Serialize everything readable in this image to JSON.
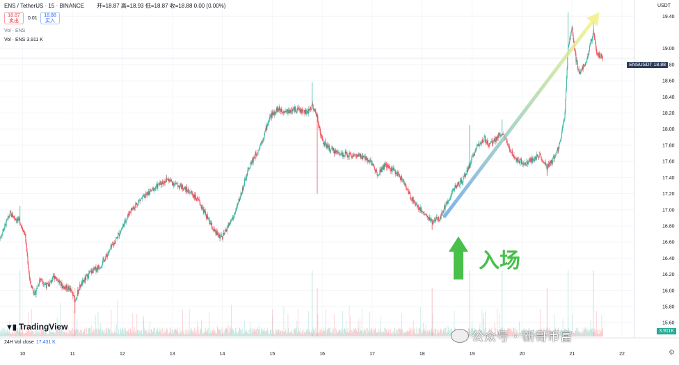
{
  "header": {
    "symbol": "ENS / TetherUS · 15 · BINANCE",
    "ohlc": "开=18.87 高=18.93 低=18.87 收=18.88 0.00 (0.00%)",
    "sell_price": "18.87",
    "sell_label": "卖出",
    "spread": "0.01",
    "buy_price": "18.88",
    "buy_label": "买入",
    "vol_label_1": "Vol · ENS",
    "vol_label_2": "Vol · ENS 3.911 K"
  },
  "axis_unit": "USDT",
  "price_tag": "ENSUSDT 18.88",
  "volume_tag": "3.911K",
  "footer": {
    "vol_label": "24H Vol close",
    "vol_value": "17.431 K",
    "brand": "TradingView"
  },
  "annotation": "入场",
  "watermark": "公众号 · 新哥币富",
  "colors": {
    "up": "#22ab94",
    "down": "#f23645",
    "arrow_start": "#6aa6e8",
    "arrow_end": "#f2f28a",
    "entry_arrow": "#48c04a"
  },
  "chart_data": {
    "type": "line",
    "x_ticks": [
      "10",
      "11",
      "12",
      "13",
      "14",
      "15",
      "16",
      "17",
      "18",
      "19",
      "20",
      "21",
      "22"
    ],
    "y_ticks": [
      "19.40",
      "19.00",
      "18.80",
      "18.60",
      "18.40",
      "18.20",
      "18.00",
      "17.80",
      "17.60",
      "17.40",
      "17.20",
      "17.00",
      "16.80",
      "16.60",
      "16.40",
      "16.20",
      "16.00",
      "15.80",
      "15.60"
    ],
    "ylim": [
      15.55,
      19.48
    ],
    "xlim": [
      9.55,
      22.25
    ],
    "price_path": [
      [
        9.55,
        16.65
      ],
      [
        9.65,
        16.8
      ],
      [
        9.75,
        16.95
      ],
      [
        9.85,
        16.9
      ],
      [
        9.95,
        16.85
      ],
      [
        10.05,
        16.7
      ],
      [
        10.15,
        16.1
      ],
      [
        10.25,
        15.95
      ],
      [
        10.35,
        16.15
      ],
      [
        10.5,
        16.05
      ],
      [
        10.65,
        16.18
      ],
      [
        10.8,
        16.05
      ],
      [
        10.95,
        16.02
      ],
      [
        11.05,
        15.88
      ],
      [
        11.15,
        16.05
      ],
      [
        11.35,
        16.22
      ],
      [
        11.55,
        16.3
      ],
      [
        11.75,
        16.5
      ],
      [
        11.95,
        16.72
      ],
      [
        12.15,
        16.98
      ],
      [
        12.35,
        17.12
      ],
      [
        12.55,
        17.22
      ],
      [
        12.75,
        17.32
      ],
      [
        12.9,
        17.38
      ],
      [
        13.05,
        17.32
      ],
      [
        13.2,
        17.28
      ],
      [
        13.4,
        17.2
      ],
      [
        13.55,
        17.08
      ],
      [
        13.7,
        16.9
      ],
      [
        13.85,
        16.72
      ],
      [
        14.0,
        16.65
      ],
      [
        14.1,
        16.78
      ],
      [
        14.25,
        16.95
      ],
      [
        14.4,
        17.25
      ],
      [
        14.55,
        17.55
      ],
      [
        14.7,
        17.72
      ],
      [
        14.82,
        17.9
      ],
      [
        14.95,
        18.15
      ],
      [
        15.1,
        18.25
      ],
      [
        15.3,
        18.22
      ],
      [
        15.5,
        18.25
      ],
      [
        15.7,
        18.2
      ],
      [
        15.8,
        18.3
      ],
      [
        15.9,
        18.15
      ],
      [
        16.0,
        17.85
      ],
      [
        16.15,
        17.75
      ],
      [
        16.35,
        17.7
      ],
      [
        16.55,
        17.68
      ],
      [
        16.75,
        17.66
      ],
      [
        16.95,
        17.62
      ],
      [
        17.1,
        17.45
      ],
      [
        17.25,
        17.55
      ],
      [
        17.45,
        17.48
      ],
      [
        17.6,
        17.38
      ],
      [
        17.75,
        17.18
      ],
      [
        17.9,
        17.05
      ],
      [
        18.05,
        16.95
      ],
      [
        18.2,
        16.85
      ],
      [
        18.35,
        16.9
      ],
      [
        18.5,
        17.1
      ],
      [
        18.65,
        17.28
      ],
      [
        18.8,
        17.35
      ],
      [
        18.95,
        17.55
      ],
      [
        19.1,
        17.8
      ],
      [
        19.25,
        17.88
      ],
      [
        19.35,
        17.8
      ],
      [
        19.5,
        17.9
      ],
      [
        19.6,
        17.95
      ],
      [
        19.75,
        17.75
      ],
      [
        19.9,
        17.62
      ],
      [
        20.05,
        17.58
      ],
      [
        20.2,
        17.62
      ],
      [
        20.35,
        17.68
      ],
      [
        20.5,
        17.52
      ],
      [
        20.65,
        17.65
      ],
      [
        20.75,
        17.8
      ],
      [
        20.85,
        18.15
      ],
      [
        20.92,
        19.0
      ],
      [
        21.0,
        19.25
      ],
      [
        21.08,
        18.85
      ],
      [
        21.15,
        18.7
      ],
      [
        21.22,
        18.78
      ],
      [
        21.3,
        18.85
      ],
      [
        21.37,
        19.05
      ],
      [
        21.43,
        19.2
      ],
      [
        21.5,
        18.95
      ],
      [
        21.58,
        18.9
      ],
      [
        21.62,
        18.88
      ]
    ],
    "spikes_high": [
      [
        9.95,
        17.05
      ],
      [
        15.8,
        18.58
      ],
      [
        20.92,
        19.45
      ],
      [
        21.43,
        19.35
      ],
      [
        18.95,
        18.05
      ],
      [
        19.6,
        18.12
      ]
    ],
    "spikes_low": [
      [
        11.05,
        15.72
      ],
      [
        15.9,
        17.2
      ],
      [
        18.2,
        16.75
      ],
      [
        20.5,
        17.42
      ]
    ],
    "entry_point": [
      18.5,
      16.93
    ],
    "trend_arrow": {
      "from": [
        18.45,
        16.92
      ],
      "to": [
        21.55,
        19.45
      ]
    }
  }
}
